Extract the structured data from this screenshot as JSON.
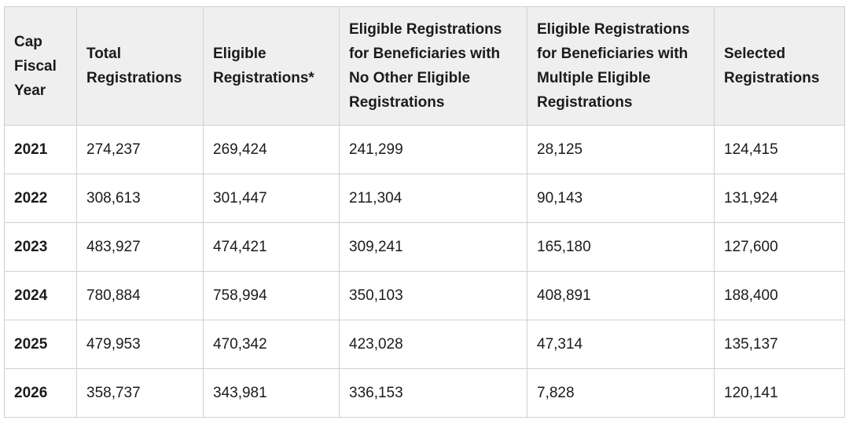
{
  "table": {
    "headers": [
      "Cap Fiscal Year",
      "Total Registrations",
      "Eligible Registrations*",
      "Eligible Registrations for Beneficiaries with No Other Eligible Registrations",
      "Eligible Registrations for Beneficiaries with Multiple Eligible Registrations",
      "Selected Registrations"
    ],
    "rows": [
      [
        "2021",
        "274,237",
        "269,424",
        "241,299",
        "28,125",
        "124,415"
      ],
      [
        "2022",
        "308,613",
        "301,447",
        "211,304",
        "90,143",
        "131,924"
      ],
      [
        "2023",
        "483,927",
        "474,421",
        "309,241",
        "165,180",
        "127,600"
      ],
      [
        "2024",
        "780,884",
        "758,994",
        "350,103",
        "408,891",
        "188,400"
      ],
      [
        "2025",
        "479,953",
        "470,342",
        "423,028",
        "47,314",
        "135,137"
      ],
      [
        "2026",
        "358,737",
        "343,981",
        "336,153",
        "7,828",
        "120,141"
      ]
    ]
  },
  "colors": {
    "header_bg": "#efefef",
    "border": "#d0d0d0",
    "text": "#1b1b1b"
  }
}
